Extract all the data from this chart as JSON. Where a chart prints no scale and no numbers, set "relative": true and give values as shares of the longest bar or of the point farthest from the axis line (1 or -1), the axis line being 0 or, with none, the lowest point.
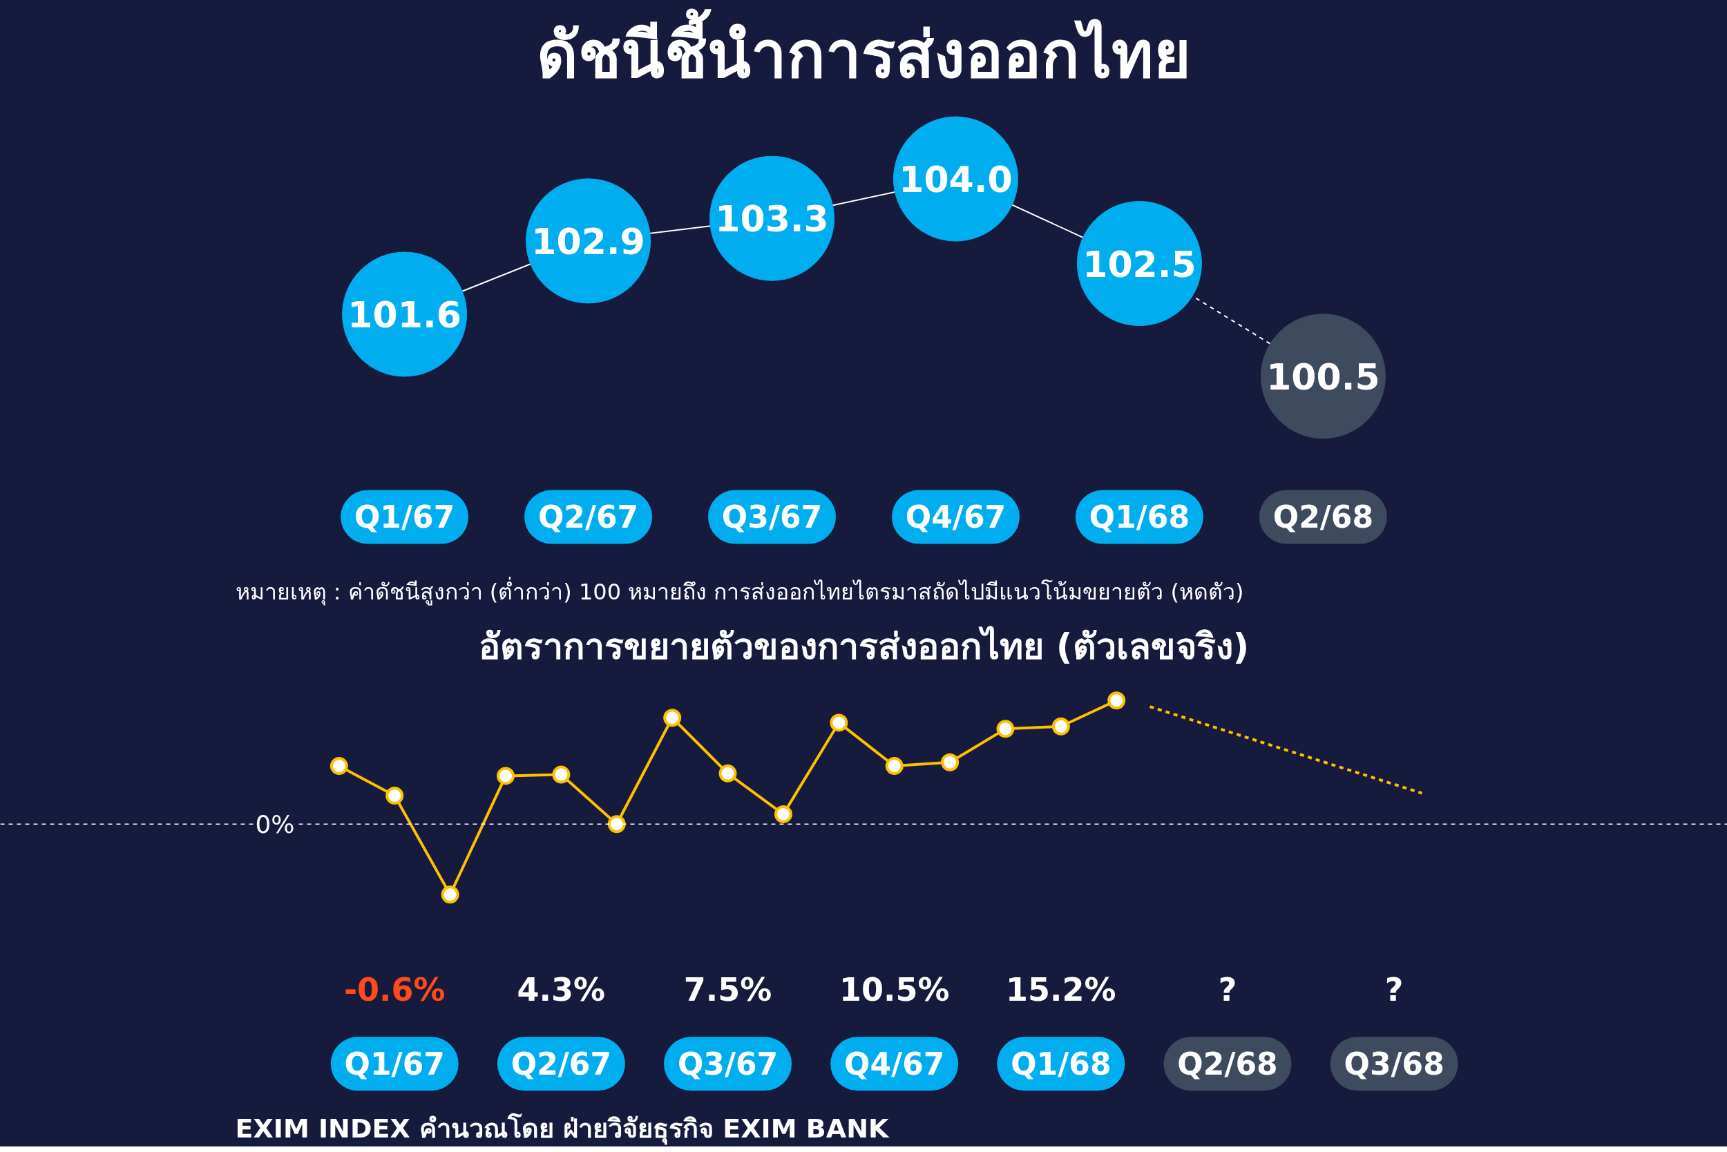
{
  "chart_data": [
    {
      "type": "bubble",
      "title": "ดัชนีชี้นำการส่งออกไทย",
      "categories": [
        "Q1/67",
        "Q2/67",
        "Q3/67",
        "Q4/67",
        "Q1/68",
        "Q2/68"
      ],
      "series": [
        {
          "color": "#ffffff",
          "colors": [
            "#00aeef",
            "#00aeef",
            "#00aeef",
            "#00aeef",
            "#00aeef",
            "#3e4a5e"
          ],
          "values": [
            101.6,
            102.9,
            103.3,
            104.0,
            102.5,
            100.5
          ],
          "sizes": [
            1,
            1,
            1,
            1,
            1,
            1
          ],
          "value_labels": [
            "101.6",
            "102.9",
            "103.3",
            "104.0",
            "102.5",
            "100.5"
          ]
        }
      ],
      "annotations": [
        "หมายเหตุ : ค่าดัชนีสูงกว่า (ต่ำกว่า) 100 หมายถึง การส่งออกไทยไตรมาสถัดไปมีแนวโน้มขยายตัว (หดตัว)"
      ]
    },
    {
      "type": "line",
      "title": "อัตราการขยายตัวของการส่งออกไทย (ตัวเลขจริง)",
      "relative": true,
      "categories": [
        null,
        "Q1/67",
        null,
        null,
        "Q2/67",
        null,
        null,
        "Q3/67",
        null,
        null,
        "Q4/67",
        null,
        null,
        "Q1/68",
        null,
        null,
        "Q2/68",
        null,
        null,
        "Q3/68",
        null
      ],
      "series": [
        {
          "color": "#ffc000",
          "values": [
            0.47,
            0.23,
            -0.57,
            0.39,
            0.4,
            0.0,
            0.86,
            0.41,
            0.08,
            0.82,
            0.47,
            0.5,
            0.77,
            0.79,
            1.0,
            null,
            null,
            null,
            null,
            null,
            null
          ]
        }
      ],
      "marker": "circle",
      "ref_lines": [
        {
          "axis": "y",
          "value": 0,
          "label": "0%",
          "color": "#ffffff",
          "line_style": "dashed"
        }
      ],
      "annotations": [
        "-0.6%",
        "4.3%",
        "7.5%",
        "10.5%",
        "15.2%",
        "?",
        "?",
        "EXIM INDEX คำนวณโดย ฝ่ายวิจัยธุรกิจ EXIM BANK"
      ]
    }
  ]
}
